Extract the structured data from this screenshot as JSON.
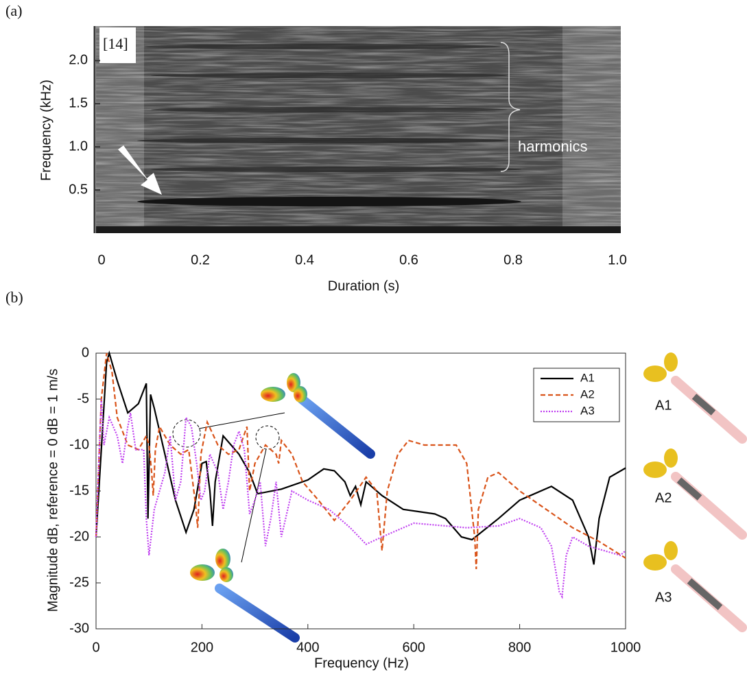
{
  "chart_data": [
    {
      "type": "spectrogram",
      "panel_label": "(a)",
      "xlabel": "Duration (s)",
      "ylabel": "Frequency (kHz)",
      "xlim": [
        0,
        1
      ],
      "ylim": [
        0,
        2.4
      ],
      "xticks": [
        0,
        0.2,
        0.4,
        0.6,
        0.8,
        {
          "value": 1,
          "label": "1.0"
        }
      ],
      "yticks": [
        0.5,
        {
          "value": 1,
          "label": "1.0"
        },
        1.5,
        {
          "value": 2,
          "label": "2.0"
        }
      ],
      "annotations": [
        "[14]",
        "harmonics"
      ]
    },
    {
      "type": "line",
      "panel_label": "(b)",
      "xlabel": "Frequency (Hz)",
      "ylabel": "Magnitude dB, reference = 0 dB = 1 m/s",
      "xlim": [
        0,
        1000
      ],
      "ylim": [
        -30,
        0
      ],
      "xticks": [
        0,
        200,
        400,
        600,
        800,
        1000
      ],
      "yticks": [
        0,
        -5,
        -10,
        -15,
        -20,
        -25,
        -30
      ],
      "legend": "upper right",
      "box": true,
      "series": [
        {
          "name": "A1",
          "color": "#000000",
          "style": "solid",
          "x": [
            0,
            20,
            25,
            40,
            60,
            80,
            95,
            98,
            103,
            110,
            130,
            150,
            170,
            185,
            200,
            208,
            215,
            220,
            225,
            240,
            255,
            270,
            290,
            305,
            350,
            400,
            430,
            450,
            470,
            480,
            490,
            500,
            510,
            540,
            580,
            640,
            660,
            690,
            710,
            760,
            800,
            860,
            900,
            930,
            940,
            950,
            970,
            1000
          ],
          "values": [
            -20,
            -1,
            0,
            -3,
            -6.5,
            -5.5,
            -3.3,
            -18,
            -4.5,
            -6,
            -11,
            -16,
            -19.5,
            -17,
            -12,
            -11.8,
            -15,
            -18.8,
            -14,
            -9,
            -10,
            -11,
            -13,
            -15.3,
            -14.8,
            -13.8,
            -12.6,
            -12.8,
            -14,
            -15.5,
            -14.5,
            -16.5,
            -14,
            -15.5,
            -17,
            -17.5,
            -18,
            -20,
            -20.3,
            -18,
            -16,
            -14.5,
            -16,
            -20,
            -23,
            -18,
            -13.5,
            -12.5
          ]
        },
        {
          "name": "A2",
          "color": "#d95319",
          "style": "dashed",
          "x": [
            0,
            10,
            20,
            30,
            40,
            60,
            80,
            95,
            100,
            105,
            108,
            112,
            120,
            140,
            160,
            175,
            188,
            192,
            198,
            210,
            230,
            250,
            270,
            285,
            290,
            300,
            320,
            340,
            345,
            350,
            370,
            390,
            420,
            450,
            480,
            510,
            530,
            540,
            550,
            570,
            590,
            620,
            680,
            700,
            715,
            718,
            722,
            740,
            760,
            800,
            850,
            900,
            950,
            1000
          ],
          "values": [
            -20,
            -5,
            0,
            -2,
            -7,
            -10,
            -10.5,
            -9,
            -10,
            -13,
            -15.5,
            -10.5,
            -8,
            -10,
            -11,
            -10.5,
            -16.5,
            -19,
            -11,
            -7.5,
            -10,
            -11,
            -10.5,
            -8,
            -15,
            -12,
            -10,
            -11,
            -12,
            -9.5,
            -11,
            -14,
            -16,
            -18.2,
            -16,
            -13.5,
            -15,
            -21.5,
            -15,
            -11,
            -9.5,
            -10,
            -10,
            -12,
            -20,
            -23.5,
            -17,
            -13.5,
            -13,
            -15,
            -17,
            -19,
            -20.5,
            -22.3
          ]
        },
        {
          "name": "A3",
          "color": "#c040f0",
          "style": "dotted",
          "x": [
            0,
            5,
            10,
            15,
            25,
            40,
            50,
            60,
            65,
            75,
            90,
            95,
            100,
            110,
            120,
            130,
            140,
            150,
            160,
            170,
            180,
            190,
            198,
            205,
            215,
            230,
            240,
            250,
            260,
            270,
            280,
            290,
            300,
            310,
            320,
            330,
            340,
            350,
            370,
            400,
            440,
            480,
            510,
            540,
            600,
            700,
            760,
            800,
            840,
            860,
            875,
            880,
            888,
            900,
            930,
            960,
            990,
            1000
          ],
          "values": [
            -20,
            -12,
            -5,
            -10,
            -7,
            -9,
            -12,
            -8,
            -6.5,
            -10.5,
            -10.5,
            -18,
            -22,
            -17,
            -15,
            -13,
            -9,
            -16,
            -14,
            -7,
            -8,
            -12,
            -16,
            -15,
            -11,
            -13,
            -17,
            -14,
            -10,
            -8.5,
            -10.5,
            -17.5,
            -16,
            -14,
            -21,
            -18,
            -14,
            -20,
            -15,
            -16,
            -17,
            -19,
            -20.8,
            -20,
            -18.5,
            -19,
            -18.8,
            -18,
            -19,
            -21,
            -26,
            -26.5,
            -22,
            -20,
            -21,
            -21.5,
            -22,
            -21.5
          ]
        }
      ],
      "side_labels": [
        "A1",
        "A2",
        "A3"
      ]
    }
  ]
}
